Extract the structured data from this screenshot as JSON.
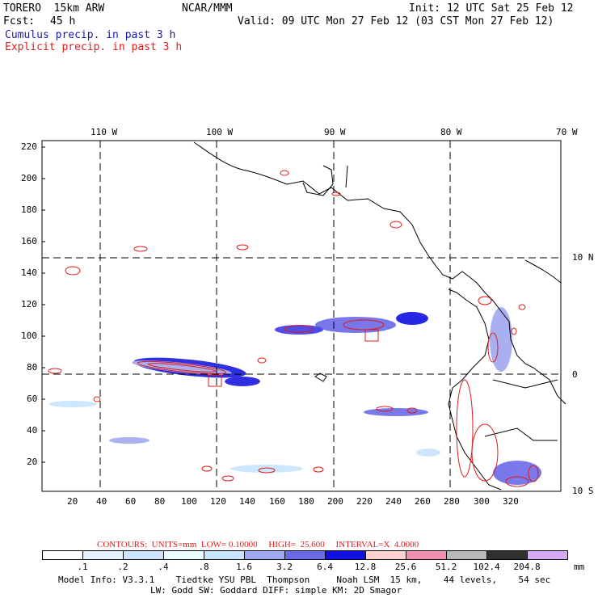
{
  "header": {
    "model_line": "TORERO  15km ARW",
    "center": "NCAR/MMM",
    "init": "Init: 12 UTC Sat 25 Feb 12",
    "fcst_label": "Fcst:",
    "fcst_value": "45 h",
    "valid": "Valid: 09 UTC Mon 27 Feb 12 (03 CST Mon 27 Feb 12)",
    "field1": "Cumulus precip. in past 3 h",
    "field2": "Explicit precip. in past 3 h"
  },
  "map": {
    "top_lon_labels": [
      "110 W",
      "100 W",
      "90 W",
      "80 W",
      "70 W"
    ],
    "right_lat_labels": [
      "10 N",
      "0",
      "10 S"
    ],
    "y_ticks": [
      "220",
      "200",
      "180",
      "160",
      "140",
      "120",
      "100",
      "80",
      "60",
      "40",
      "20"
    ],
    "x_ticks": [
      "20",
      "40",
      "60",
      "80",
      "100",
      "120",
      "140",
      "160",
      "180",
      "200",
      "220",
      "240",
      "260",
      "280",
      "300",
      "320"
    ],
    "colors": {
      "coast": "#000000",
      "grid": "#000000",
      "explicit_contour": "#e01a1a"
    }
  },
  "footer": {
    "contours": "CONTOURS:  UNITS=mm  LOW= 0.10000     HIGH=  25.600     INTERVAL=X  4.0000",
    "legend_values": [
      ".1",
      ".2",
      ".4",
      ".8",
      "1.6",
      "3.2",
      "6.4",
      "12.8",
      "25.6",
      "51.2",
      "102.4",
      "204.8"
    ],
    "legend_unit": "mm",
    "legend_colors": [
      "#ffffff",
      "#e6f2ff",
      "#cce4ff",
      "#e8ffff",
      "#c8e4ff",
      "#a0a8f0",
      "#6a6ae8",
      "#1010e0",
      "#ffd0d0",
      "#f090b0",
      "#b8b8b8",
      "#303030",
      "#d8a8f8"
    ],
    "model_info_1": "Model Info: V3.3.1    Tiedtke YSU PBL  Thompson     Noah LSM  15 km,    44 levels,    54 sec",
    "model_info_2": "LW: Godd SW: Goddard DIFF: simple KM: 2D Smagor"
  }
}
